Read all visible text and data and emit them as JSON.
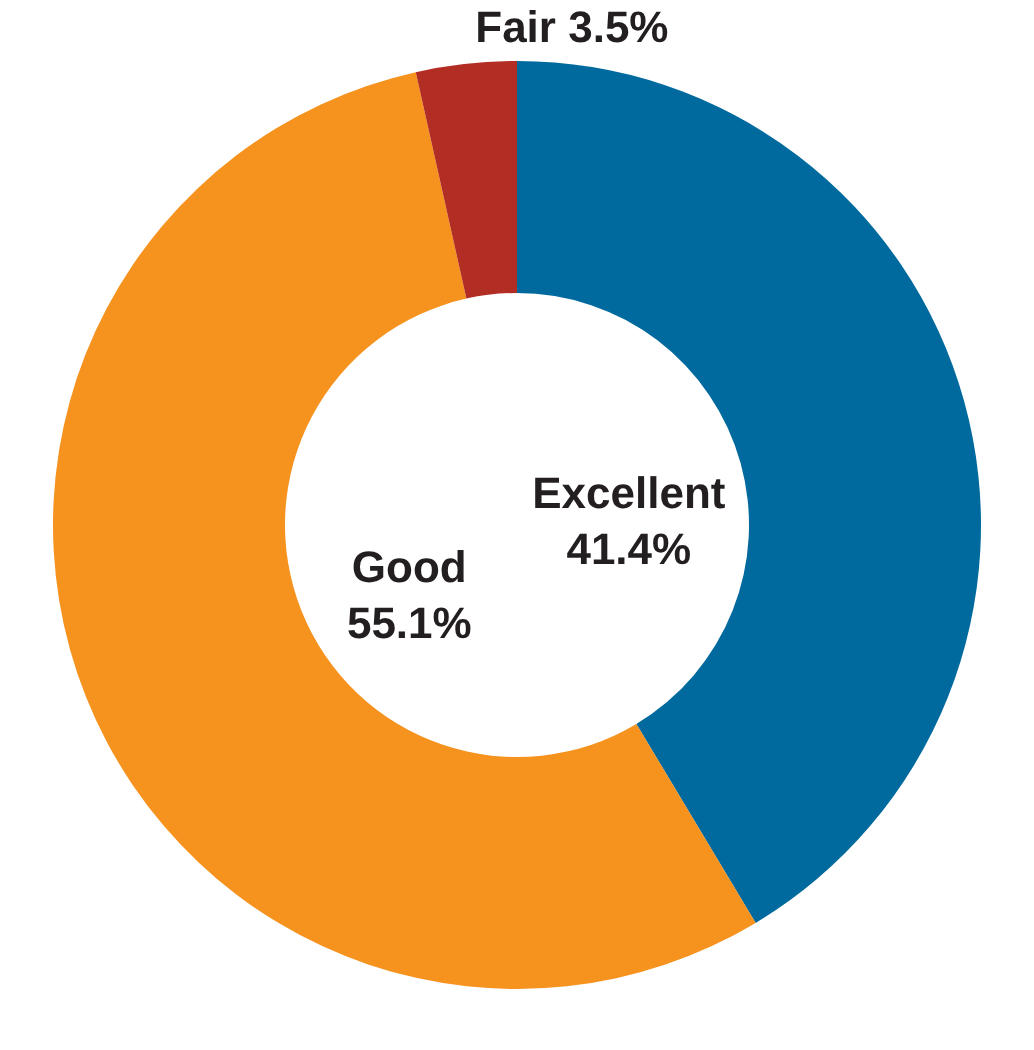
{
  "chart_data": {
    "type": "donut",
    "categories": [
      "Excellent",
      "Good",
      "Fair"
    ],
    "values": [
      41.4,
      55.1,
      3.5
    ],
    "value_labels": [
      "41.4%",
      "55.1%",
      "3.5%"
    ],
    "colors": [
      "#00699d",
      "#f6921e",
      "#b22e25"
    ]
  }
}
